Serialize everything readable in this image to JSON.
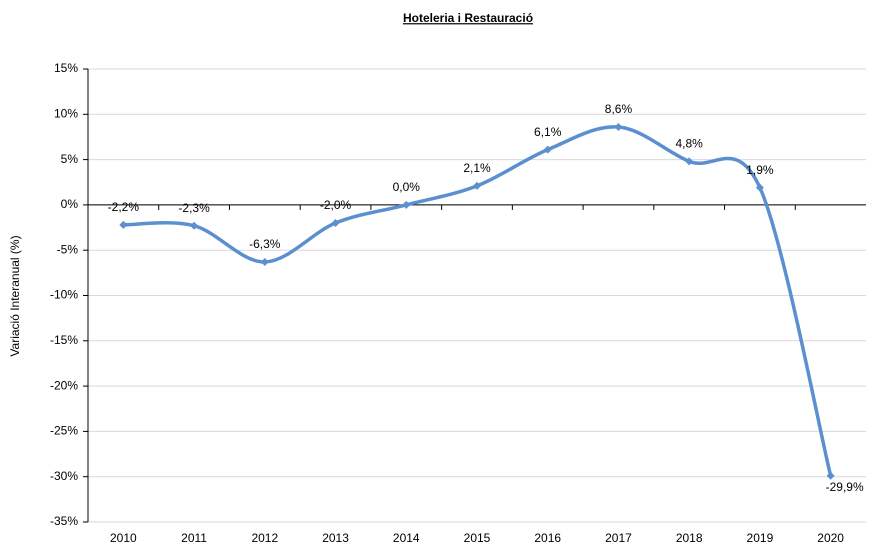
{
  "chart_data": {
    "type": "line",
    "title": "Hoteleria i Restauració",
    "y_label": "Variació Interanual (%)",
    "categories": [
      "2010",
      "2011",
      "2012",
      "2013",
      "2014",
      "2015",
      "2016",
      "2017",
      "2018",
      "2019",
      "2020"
    ],
    "series": [
      {
        "name": "Hoteleria i Restauració",
        "color": "#5b8fd0",
        "values": [
          -2.2,
          -2.3,
          -6.3,
          -2.0,
          0.0,
          2.1,
          6.1,
          8.6,
          4.8,
          1.9,
          -29.9
        ],
        "value_labels": [
          "-2,2%",
          "-2,3%",
          "-6,3%",
          "-2,0%",
          "0,0%",
          "2,1%",
          "6,1%",
          "8,6%",
          "4,8%",
          "1,9%",
          "-29,9%"
        ]
      }
    ],
    "ylim": [
      -35,
      15
    ],
    "yticks": [
      {
        "value": -35,
        "label": "-35%"
      },
      {
        "value": -30,
        "label": "-30%"
      },
      {
        "value": -25,
        "label": "-25%"
      },
      {
        "value": -20,
        "label": "-20%"
      },
      {
        "value": -15,
        "label": "-15%"
      },
      {
        "value": -10,
        "label": "-10%"
      },
      {
        "value": -5,
        "label": "-5%"
      },
      {
        "value": 0,
        "label": "0%"
      },
      {
        "value": 5,
        "label": "5%"
      },
      {
        "value": 10,
        "label": "10%"
      },
      {
        "value": 15,
        "label": "15%"
      }
    ],
    "grid": true
  }
}
